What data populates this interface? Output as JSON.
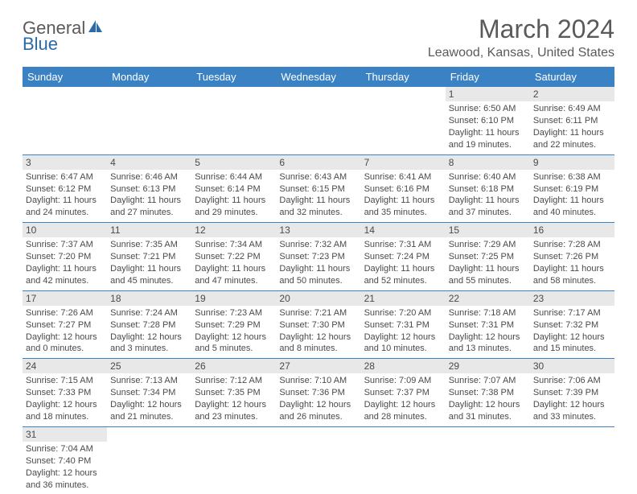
{
  "logo": {
    "general": "General",
    "blue": "Blue"
  },
  "title": "March 2024",
  "location": "Leawood, Kansas, United States",
  "weekdays": [
    "Sunday",
    "Monday",
    "Tuesday",
    "Wednesday",
    "Thursday",
    "Friday",
    "Saturday"
  ],
  "colors": {
    "header_bg": "#3b82c4",
    "header_text": "#ffffff",
    "daynum_bg": "#e8e8e8",
    "border": "#3b82c4",
    "text": "#4a4a4a",
    "logo_blue": "#2b6aa8"
  },
  "weeks": [
    [
      null,
      null,
      null,
      null,
      null,
      {
        "n": "1",
        "sr": "Sunrise: 6:50 AM",
        "ss": "Sunset: 6:10 PM",
        "dl": "Daylight: 11 hours and 19 minutes."
      },
      {
        "n": "2",
        "sr": "Sunrise: 6:49 AM",
        "ss": "Sunset: 6:11 PM",
        "dl": "Daylight: 11 hours and 22 minutes."
      }
    ],
    [
      {
        "n": "3",
        "sr": "Sunrise: 6:47 AM",
        "ss": "Sunset: 6:12 PM",
        "dl": "Daylight: 11 hours and 24 minutes."
      },
      {
        "n": "4",
        "sr": "Sunrise: 6:46 AM",
        "ss": "Sunset: 6:13 PM",
        "dl": "Daylight: 11 hours and 27 minutes."
      },
      {
        "n": "5",
        "sr": "Sunrise: 6:44 AM",
        "ss": "Sunset: 6:14 PM",
        "dl": "Daylight: 11 hours and 29 minutes."
      },
      {
        "n": "6",
        "sr": "Sunrise: 6:43 AM",
        "ss": "Sunset: 6:15 PM",
        "dl": "Daylight: 11 hours and 32 minutes."
      },
      {
        "n": "7",
        "sr": "Sunrise: 6:41 AM",
        "ss": "Sunset: 6:16 PM",
        "dl": "Daylight: 11 hours and 35 minutes."
      },
      {
        "n": "8",
        "sr": "Sunrise: 6:40 AM",
        "ss": "Sunset: 6:18 PM",
        "dl": "Daylight: 11 hours and 37 minutes."
      },
      {
        "n": "9",
        "sr": "Sunrise: 6:38 AM",
        "ss": "Sunset: 6:19 PM",
        "dl": "Daylight: 11 hours and 40 minutes."
      }
    ],
    [
      {
        "n": "10",
        "sr": "Sunrise: 7:37 AM",
        "ss": "Sunset: 7:20 PM",
        "dl": "Daylight: 11 hours and 42 minutes."
      },
      {
        "n": "11",
        "sr": "Sunrise: 7:35 AM",
        "ss": "Sunset: 7:21 PM",
        "dl": "Daylight: 11 hours and 45 minutes."
      },
      {
        "n": "12",
        "sr": "Sunrise: 7:34 AM",
        "ss": "Sunset: 7:22 PM",
        "dl": "Daylight: 11 hours and 47 minutes."
      },
      {
        "n": "13",
        "sr": "Sunrise: 7:32 AM",
        "ss": "Sunset: 7:23 PM",
        "dl": "Daylight: 11 hours and 50 minutes."
      },
      {
        "n": "14",
        "sr": "Sunrise: 7:31 AM",
        "ss": "Sunset: 7:24 PM",
        "dl": "Daylight: 11 hours and 52 minutes."
      },
      {
        "n": "15",
        "sr": "Sunrise: 7:29 AM",
        "ss": "Sunset: 7:25 PM",
        "dl": "Daylight: 11 hours and 55 minutes."
      },
      {
        "n": "16",
        "sr": "Sunrise: 7:28 AM",
        "ss": "Sunset: 7:26 PM",
        "dl": "Daylight: 11 hours and 58 minutes."
      }
    ],
    [
      {
        "n": "17",
        "sr": "Sunrise: 7:26 AM",
        "ss": "Sunset: 7:27 PM",
        "dl": "Daylight: 12 hours and 0 minutes."
      },
      {
        "n": "18",
        "sr": "Sunrise: 7:24 AM",
        "ss": "Sunset: 7:28 PM",
        "dl": "Daylight: 12 hours and 3 minutes."
      },
      {
        "n": "19",
        "sr": "Sunrise: 7:23 AM",
        "ss": "Sunset: 7:29 PM",
        "dl": "Daylight: 12 hours and 5 minutes."
      },
      {
        "n": "20",
        "sr": "Sunrise: 7:21 AM",
        "ss": "Sunset: 7:30 PM",
        "dl": "Daylight: 12 hours and 8 minutes."
      },
      {
        "n": "21",
        "sr": "Sunrise: 7:20 AM",
        "ss": "Sunset: 7:31 PM",
        "dl": "Daylight: 12 hours and 10 minutes."
      },
      {
        "n": "22",
        "sr": "Sunrise: 7:18 AM",
        "ss": "Sunset: 7:31 PM",
        "dl": "Daylight: 12 hours and 13 minutes."
      },
      {
        "n": "23",
        "sr": "Sunrise: 7:17 AM",
        "ss": "Sunset: 7:32 PM",
        "dl": "Daylight: 12 hours and 15 minutes."
      }
    ],
    [
      {
        "n": "24",
        "sr": "Sunrise: 7:15 AM",
        "ss": "Sunset: 7:33 PM",
        "dl": "Daylight: 12 hours and 18 minutes."
      },
      {
        "n": "25",
        "sr": "Sunrise: 7:13 AM",
        "ss": "Sunset: 7:34 PM",
        "dl": "Daylight: 12 hours and 21 minutes."
      },
      {
        "n": "26",
        "sr": "Sunrise: 7:12 AM",
        "ss": "Sunset: 7:35 PM",
        "dl": "Daylight: 12 hours and 23 minutes."
      },
      {
        "n": "27",
        "sr": "Sunrise: 7:10 AM",
        "ss": "Sunset: 7:36 PM",
        "dl": "Daylight: 12 hours and 26 minutes."
      },
      {
        "n": "28",
        "sr": "Sunrise: 7:09 AM",
        "ss": "Sunset: 7:37 PM",
        "dl": "Daylight: 12 hours and 28 minutes."
      },
      {
        "n": "29",
        "sr": "Sunrise: 7:07 AM",
        "ss": "Sunset: 7:38 PM",
        "dl": "Daylight: 12 hours and 31 minutes."
      },
      {
        "n": "30",
        "sr": "Sunrise: 7:06 AM",
        "ss": "Sunset: 7:39 PM",
        "dl": "Daylight: 12 hours and 33 minutes."
      }
    ],
    [
      {
        "n": "31",
        "sr": "Sunrise: 7:04 AM",
        "ss": "Sunset: 7:40 PM",
        "dl": "Daylight: 12 hours and 36 minutes."
      },
      null,
      null,
      null,
      null,
      null,
      null
    ]
  ]
}
